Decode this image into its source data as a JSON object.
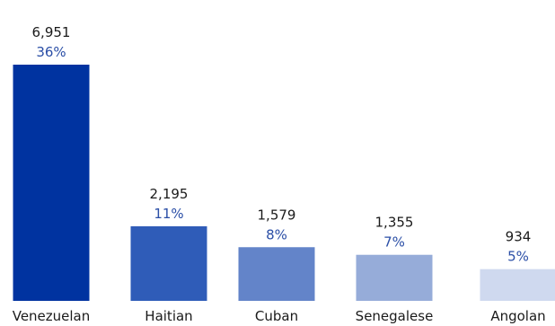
{
  "chart_data": {
    "type": "bar",
    "categories": [
      "Venezuelan",
      "Haitian",
      "Cuban",
      "Senegalese",
      "Angolan"
    ],
    "values": [
      6951,
      2195,
      1579,
      1355,
      934
    ],
    "value_labels": [
      "6,951",
      "2,195",
      "1,579",
      "1,355",
      "934"
    ],
    "percent_labels": [
      "36%",
      "11%",
      "8%",
      "7%",
      "5%"
    ],
    "bar_colors": [
      "#0033a0",
      "#2f5cb8",
      "#6384c9",
      "#96acd9",
      "#cfd9ef"
    ],
    "ylim": [
      0,
      6951
    ],
    "grid": false,
    "legend": "none"
  }
}
